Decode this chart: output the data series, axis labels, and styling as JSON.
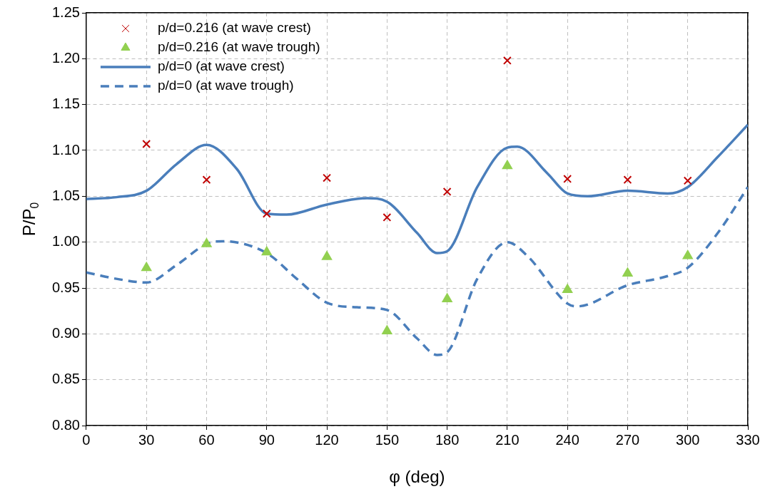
{
  "chart_data": {
    "type": "line",
    "xlabel": "φ (deg)",
    "ylabel": "P/P$_{0}$",
    "xlim": [
      0,
      330
    ],
    "xticks": [
      0,
      30,
      60,
      90,
      120,
      150,
      180,
      210,
      240,
      270,
      300,
      330
    ],
    "ylim": [
      0.8,
      1.25
    ],
    "yticks": [
      {
        "value": 0.8,
        "label": "0.80"
      },
      {
        "value": 0.85,
        "label": "0.85"
      },
      {
        "value": 0.9,
        "label": "0.90"
      },
      {
        "value": 0.95,
        "label": "0.95"
      },
      {
        "value": 1.0,
        "label": "1.00"
      },
      {
        "value": 1.05,
        "label": "1.05"
      },
      {
        "value": 1.1,
        "label": "1.10"
      },
      {
        "value": 1.15,
        "label": "1.15"
      },
      {
        "value": 1.2,
        "label": "1.20"
      },
      {
        "value": 1.25,
        "label": "1.25"
      }
    ],
    "grid": true,
    "legend": "top left",
    "series": [
      {
        "name": "p/d=0.216 (at wave crest)",
        "type": "scatter",
        "marker": "cross",
        "color": "#c00000",
        "x": [
          30,
          60,
          90,
          120,
          150,
          180,
          210,
          240,
          270,
          300
        ],
        "values": [
          1.107,
          1.068,
          1.031,
          1.07,
          1.027,
          1.055,
          1.198,
          1.069,
          1.068,
          1.067
        ]
      },
      {
        "name": "p/d=0.216 (at wave trough)",
        "type": "scatter",
        "marker": "triangle",
        "color": "#92d050",
        "x": [
          30,
          60,
          90,
          120,
          150,
          180,
          210,
          240,
          270,
          300
        ],
        "values": [
          0.972,
          0.998,
          0.989,
          0.984,
          0.903,
          0.938,
          1.083,
          0.948,
          0.966,
          0.985
        ]
      },
      {
        "name": "p/d=0 (at wave crest)",
        "line_style": "solid",
        "color": "#4a7ebb",
        "x": [
          0,
          15,
          30,
          45,
          60,
          75,
          90,
          100,
          120,
          140,
          150,
          165,
          175,
          180,
          195,
          210,
          215,
          230,
          240,
          250,
          270,
          290,
          300,
          315,
          330
        ],
        "values": [
          1.047,
          1.049,
          1.056,
          1.085,
          1.106,
          1.08,
          1.031,
          1.03,
          1.041,
          1.048,
          1.044,
          1.01,
          0.988,
          0.99,
          1.06,
          1.103,
          1.104,
          1.075,
          1.053,
          1.05,
          1.056,
          1.053,
          1.06,
          1.093,
          1.128
        ]
      },
      {
        "name": "p/d=0 (at wave trough)",
        "line_style": "dashed",
        "color": "#4a7ebb",
        "x": [
          0,
          15,
          30,
          45,
          60,
          68,
          90,
          105,
          120,
          135,
          150,
          165,
          175,
          180,
          195,
          210,
          220,
          240,
          245,
          270,
          290,
          300,
          315,
          330
        ],
        "values": [
          0.967,
          0.96,
          0.956,
          0.975,
          0.998,
          1.001,
          0.988,
          0.96,
          0.934,
          0.929,
          0.926,
          0.895,
          0.877,
          0.88,
          0.96,
          1.0,
          0.985,
          0.933,
          0.93,
          0.953,
          0.963,
          0.972,
          1.01,
          1.06
        ]
      }
    ]
  }
}
